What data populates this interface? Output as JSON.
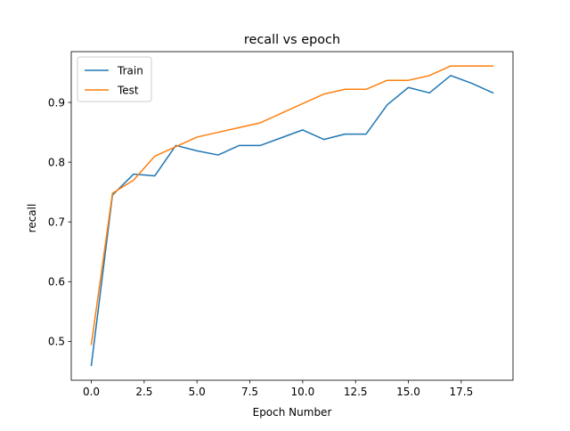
{
  "chart_data": {
    "type": "line",
    "title": "recall vs epoch",
    "xlabel": "Epoch Number",
    "ylabel": "recall",
    "xlim": [
      -0.95,
      19.95
    ],
    "ylim": [
      0.435,
      0.985
    ],
    "xticks": [
      0,
      2.5,
      5,
      7.5,
      10,
      12.5,
      15,
      17.5
    ],
    "xtick_labels": [
      "0.0",
      "2.5",
      "5.0",
      "7.5",
      "10.0",
      "12.5",
      "15.0",
      "17.5"
    ],
    "yticks": [
      0.5,
      0.6,
      0.7,
      0.8,
      0.9
    ],
    "ytick_labels": [
      "0.5",
      "0.6",
      "0.7",
      "0.8",
      "0.9"
    ],
    "grid": false,
    "legend_position": "top-left",
    "x": [
      0,
      1,
      2,
      3,
      4,
      5,
      6,
      7,
      8,
      9,
      10,
      11,
      12,
      13,
      14,
      15,
      16,
      17,
      18,
      19
    ],
    "series": [
      {
        "name": "Train",
        "color": "#1f77b4",
        "values": [
          0.46,
          0.745,
          0.78,
          0.777,
          0.828,
          0.819,
          0.812,
          0.828,
          0.828,
          0.841,
          0.854,
          0.838,
          0.847,
          0.847,
          0.896,
          0.925,
          0.916,
          0.945,
          0.932,
          0.916
        ]
      },
      {
        "name": "Test",
        "color": "#ff7f0e",
        "values": [
          0.495,
          0.748,
          0.77,
          0.81,
          0.826,
          0.842,
          0.85,
          0.858,
          0.866,
          0.882,
          0.898,
          0.914,
          0.922,
          0.922,
          0.937,
          0.937,
          0.945,
          0.961,
          0.961,
          0.961
        ]
      }
    ]
  }
}
